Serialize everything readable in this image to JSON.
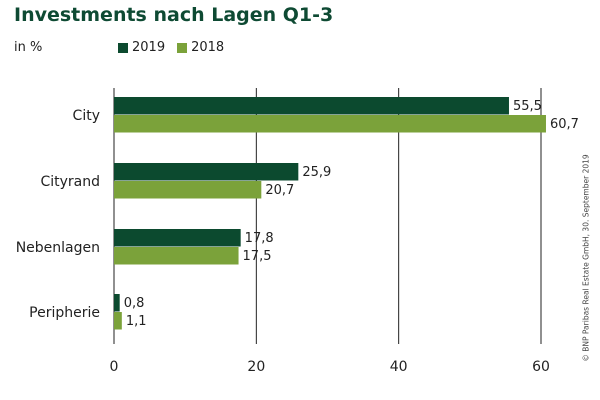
{
  "colors": {
    "series_2019": "#0c4a2f",
    "series_2018": "#7ba23a",
    "title": "#0e4a33",
    "grid": "#222222"
  },
  "copyright": "© BNP Paribas Real Estate GmbH, 30. September 2019",
  "chart_data": {
    "type": "bar",
    "orientation": "horizontal",
    "title": "Investments nach Lagen Q1-3",
    "unit_label": "in %",
    "categories": [
      "City",
      "Cityrand",
      "Nebenlagen",
      "Peripherie"
    ],
    "series": [
      {
        "name": "2019",
        "values": [
          55.5,
          25.9,
          17.8,
          0.8
        ],
        "labels": [
          "55,5",
          "25,9",
          "17,8",
          "0,8"
        ]
      },
      {
        "name": "2018",
        "values": [
          60.7,
          20.7,
          17.5,
          1.1
        ],
        "labels": [
          "60,7",
          "20,7",
          "17,5",
          "1,1"
        ]
      }
    ],
    "xlim": [
      0,
      60
    ],
    "xticks": [
      0,
      20,
      40,
      60
    ],
    "grid": true,
    "legend": "top"
  }
}
